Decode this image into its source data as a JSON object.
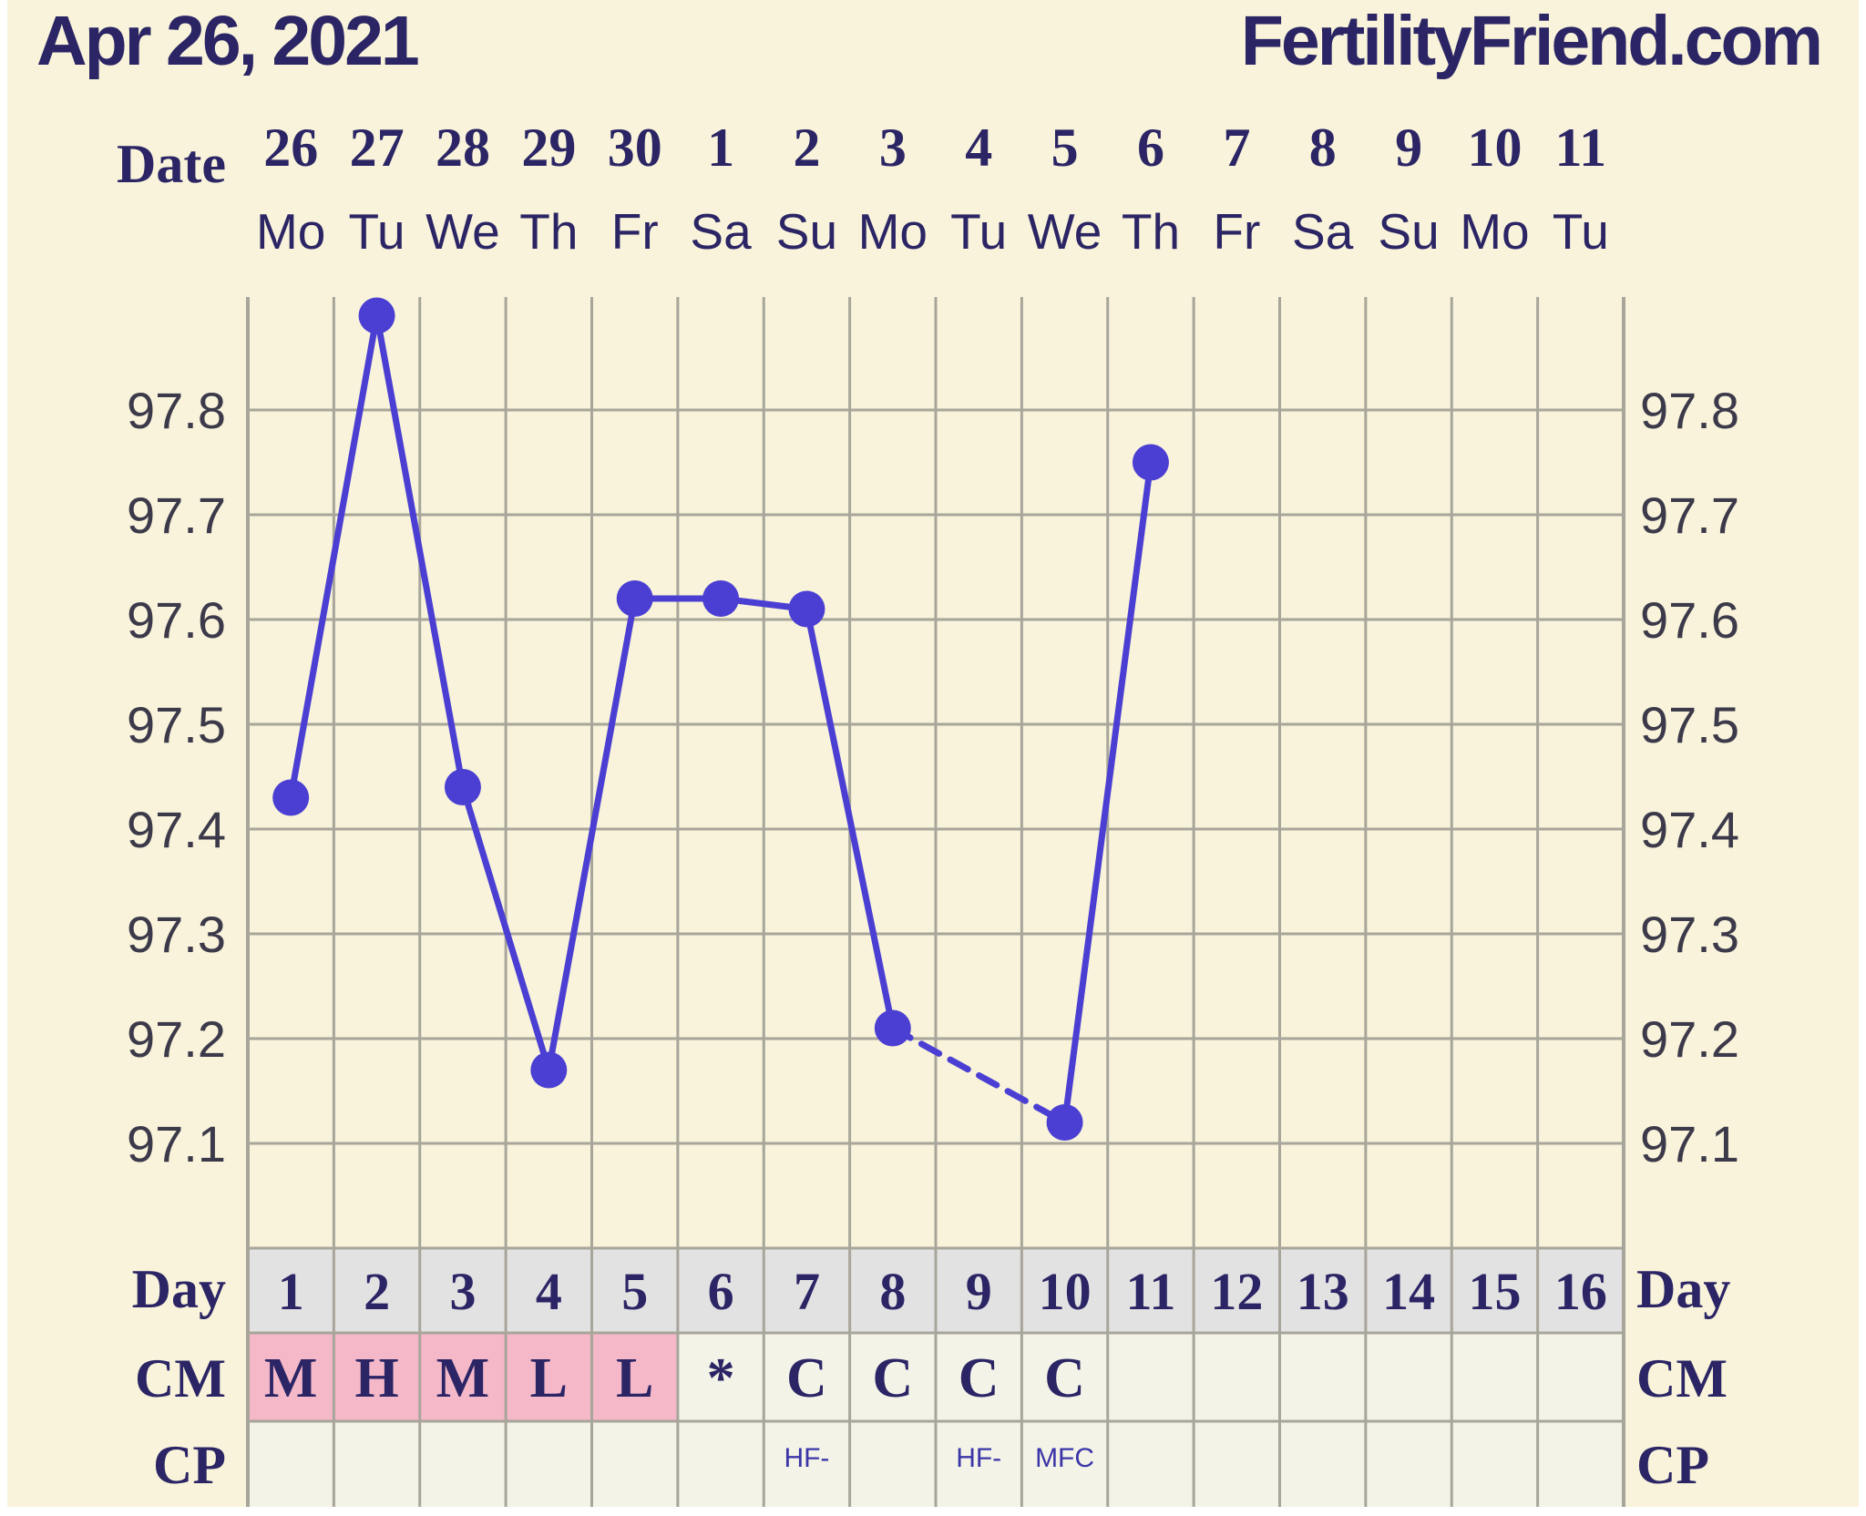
{
  "header": {
    "date": "Apr 26, 2021",
    "brand": "FertilityFriend.com"
  },
  "colors": {
    "background": "#f8f3da",
    "grid": "#a8a59a",
    "line": "#4b3fd3",
    "text": "#2b2565",
    "menstruation_cell": "#f4b8c8",
    "day_row": "#e2e2e2",
    "lower_cells": "#f3f3e8"
  },
  "chart_data": {
    "type": "line",
    "title": "",
    "ylim": [
      97.0,
      97.9
    ],
    "yticks": [
      "97.1",
      "97.2",
      "97.3",
      "97.4",
      "97.5",
      "97.6",
      "97.7",
      "97.8"
    ],
    "grid": true,
    "date_label": "Date",
    "dates": [
      "26",
      "27",
      "28",
      "29",
      "30",
      "1",
      "2",
      "3",
      "4",
      "5",
      "6",
      "7",
      "8",
      "9",
      "10",
      "11"
    ],
    "weekdays": [
      "Mo",
      "Tu",
      "We",
      "Th",
      "Fr",
      "Sa",
      "Su",
      "Mo",
      "Tu",
      "We",
      "Th",
      "Fr",
      "Sa",
      "Su",
      "Mo",
      "Tu"
    ],
    "series": [
      {
        "values": [
          97.43,
          97.89,
          97.44,
          97.17,
          97.62,
          97.62,
          97.61,
          97.21,
          null,
          97.12,
          97.75,
          null,
          null,
          null,
          null,
          null
        ],
        "dashed_segments": [
          [
            7,
            9
          ]
        ]
      }
    ],
    "day_label": "Day",
    "days": [
      "1",
      "2",
      "3",
      "4",
      "5",
      "6",
      "7",
      "8",
      "9",
      "10",
      "11",
      "12",
      "13",
      "14",
      "15",
      "16"
    ],
    "cm_label": "CM",
    "cm": [
      "M",
      "H",
      "M",
      "L",
      "L",
      "*",
      "C",
      "C",
      "C",
      "C",
      "",
      "",
      "",
      "",
      "",
      ""
    ],
    "cm_menstruation": [
      true,
      true,
      true,
      true,
      true,
      false,
      false,
      false,
      false,
      false,
      false,
      false,
      false,
      false,
      false,
      false
    ],
    "cp_label": "CP",
    "cp": [
      "",
      "",
      "",
      "",
      "",
      "",
      "HF-",
      "",
      "HF-",
      "MFC",
      "",
      "",
      "",
      "",
      "",
      ""
    ]
  }
}
